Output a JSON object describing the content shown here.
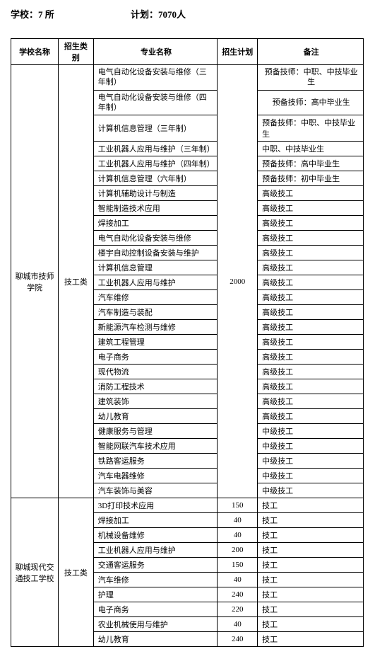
{
  "header": {
    "schools_label": "学校：",
    "schools_value": "7 所",
    "plan_label": "计划：",
    "plan_value": "7070人"
  },
  "columns": {
    "school": "学校名称",
    "type": "招生类别",
    "major": "专业名称",
    "plan": "招生计划",
    "note": "备注"
  },
  "school1": {
    "name": "聊城市技师学院",
    "type": "技工类",
    "plan": "2000",
    "rows": [
      {
        "major": "电气自动化设备安装与维修（三年制）",
        "note": "预备技师：中职、中技毕业生",
        "twoLine": true
      },
      {
        "major": "电气自动化设备安装与维修（四年制）",
        "note": "预备技师：高中毕业生",
        "twoLine": true
      },
      {
        "major": "计算机信息管理（三年制）",
        "note": "预备技师：中职、中技毕业生"
      },
      {
        "major": "工业机器人应用与维护（三年制）",
        "note": "中职、中技毕业生"
      },
      {
        "major": "工业机器人应用与维护（四年制）",
        "note": "预备技师：高中毕业生"
      },
      {
        "major": "计算机信息管理（六年制）",
        "note": "预备技师：初中毕业生"
      },
      {
        "major": "计算机辅助设计与制造",
        "note": "高级技工"
      },
      {
        "major": "智能制造技术应用",
        "note": "高级技工"
      },
      {
        "major": "焊接加工",
        "note": "高级技工"
      },
      {
        "major": "电气自动化设备安装与维修",
        "note": "高级技工"
      },
      {
        "major": "楼宇自动控制设备安装与维护",
        "note": "高级技工"
      },
      {
        "major": "计算机信息管理",
        "note": "高级技工"
      },
      {
        "major": "工业机器人应用与维护",
        "note": "高级技工"
      },
      {
        "major": "汽车维修",
        "note": "高级技工"
      },
      {
        "major": "汽车制造与装配",
        "note": "高级技工"
      },
      {
        "major": "新能源汽车检测与维修",
        "note": "高级技工"
      },
      {
        "major": "建筑工程管理",
        "note": "高级技工"
      },
      {
        "major": "电子商务",
        "note": "高级技工"
      },
      {
        "major": "现代物流",
        "note": "高级技工"
      },
      {
        "major": "消防工程技术",
        "note": "高级技工"
      },
      {
        "major": "建筑装饰",
        "note": "高级技工"
      },
      {
        "major": "幼儿教育",
        "note": "高级技工"
      },
      {
        "major": "健康服务与管理",
        "note": "中级技工"
      },
      {
        "major": "智能网联汽车技术应用",
        "note": "中级技工"
      },
      {
        "major": "铁路客运服务",
        "note": "中级技工"
      },
      {
        "major": "汽车电器维修",
        "note": "中级技工"
      },
      {
        "major": "汽车装饰与美容",
        "note": "中级技工"
      }
    ]
  },
  "school2": {
    "name": "聊城现代交通技工学校",
    "type": "技工类",
    "rows": [
      {
        "major": "3D打印技术应用",
        "plan": "150",
        "note": "技工"
      },
      {
        "major": "焊接加工",
        "plan": "40",
        "note": "技工"
      },
      {
        "major": "机械设备维修",
        "plan": "40",
        "note": "技工"
      },
      {
        "major": "工业机器人应用与维护",
        "plan": "200",
        "note": "技工"
      },
      {
        "major": "交通客运服务",
        "plan": "150",
        "note": "技工"
      },
      {
        "major": "汽车维修",
        "plan": "40",
        "note": "技工"
      },
      {
        "major": "护理",
        "plan": "240",
        "note": "技工"
      },
      {
        "major": "电子商务",
        "plan": "220",
        "note": "技工"
      },
      {
        "major": "农业机械使用与维护",
        "plan": "40",
        "note": "技工"
      },
      {
        "major": "幼儿教育",
        "plan": "240",
        "note": "技工"
      }
    ]
  }
}
